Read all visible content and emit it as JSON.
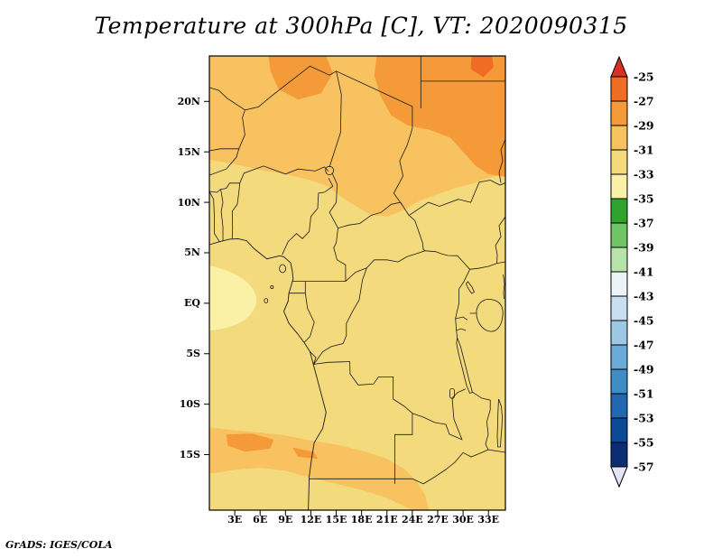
{
  "title": "Temperature at 300hPa [C], VT: 2020090315",
  "footer": "GrADS: IGES/COLA",
  "axes": {
    "y_labels": [
      "20N",
      "15N",
      "10N",
      "5N",
      "EQ",
      "5S",
      "10S",
      "15S"
    ],
    "x_labels": [
      "3E",
      "6E",
      "9E",
      "12E",
      "15E",
      "18E",
      "21E",
      "24E",
      "27E",
      "30E",
      "33E"
    ]
  },
  "colorbar": {
    "labels": [
      "-25",
      "-27",
      "-29",
      "-31",
      "-33",
      "-35",
      "-37",
      "-39",
      "-41",
      "-43",
      "-45",
      "-47",
      "-49",
      "-51",
      "-53",
      "-55",
      "-57"
    ],
    "colors": [
      "#ee6c23",
      "#f59a38",
      "#f7c25f",
      "#f3da7c",
      "#faf0a6",
      "#2fa32c",
      "#6fc465",
      "#b7e3a8",
      "#eaf4f9",
      "#c8dff2",
      "#9cc8e6",
      "#6aaad8",
      "#3f8cc6",
      "#2268b0",
      "#0d4a96",
      "#0a2d73"
    ],
    "above_color": "#d92f27",
    "below_color": "#e4e4f7"
  },
  "chart_data": {
    "type": "heatmap",
    "title": "Temperature at 300hPa [C], VT: 2020090315",
    "variable": "Temperature",
    "pressure_level": "300hPa",
    "units": "C",
    "valid_time": "2020090315",
    "renderer": "GrADS: IGES/COLA",
    "x_ticks": [
      "3E",
      "6E",
      "9E",
      "12E",
      "15E",
      "18E",
      "21E",
      "24E",
      "27E",
      "30E",
      "33E"
    ],
    "y_ticks": [
      "20N",
      "15N",
      "10N",
      "5N",
      "EQ",
      "5S",
      "10S",
      "15S"
    ],
    "lon_range_deg_east": [
      0,
      35
    ],
    "lat_range_deg": [
      -20.5,
      24.5
    ],
    "legend_position": "right",
    "grid": false,
    "contour_levels_c": [
      -25,
      -27,
      -29,
      -31,
      -33,
      -35,
      -37,
      -39,
      -41,
      -43,
      -45,
      -47,
      -49,
      -51,
      -53,
      -55,
      -57
    ],
    "field_regions": [
      {
        "area": "Sahara/Sahel belt north of ~12N",
        "approx_temp_c": [
          -31,
          -29
        ]
      },
      {
        "area": "patches 20N-24N near 7E-14E and 20E-33E",
        "approx_temp_c": [
          -29,
          -27
        ]
      },
      {
        "area": "small warm spot near 31E-33E, 23N-24N",
        "approx_temp_c": [
          -27,
          -25
        ]
      },
      {
        "area": "equatorial belt ~12N to ~12S (most of map)",
        "approx_temp_c": [
          -33,
          -31
        ]
      },
      {
        "area": "faint lighter patches near west coast around EQ",
        "approx_temp_c": [
          -35,
          -33
        ]
      },
      {
        "area": "southern band ~13S-18S, strongest in west",
        "approx_temp_c": [
          -31,
          -29
        ]
      },
      {
        "area": "streaks near 2E-8E, 13S-15S",
        "approx_temp_c": [
          -29,
          -27
        ]
      }
    ]
  }
}
